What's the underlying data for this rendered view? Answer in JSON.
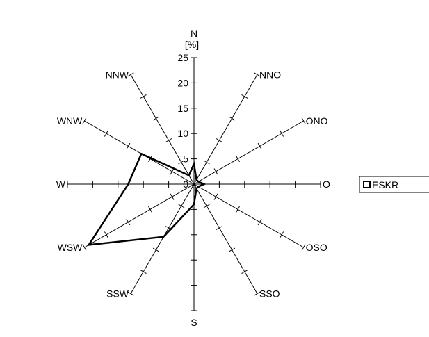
{
  "chart_data": {
    "type": "radar",
    "unit_label": "[%]",
    "directions": [
      "N",
      "NNO",
      "ONO",
      "O",
      "OSO",
      "SSO",
      "S",
      "SSW",
      "WSW",
      "W",
      "WNW",
      "NNW"
    ],
    "rmax": 25,
    "tick_step": 5,
    "tick_labels": [
      "0",
      "5",
      "10",
      "15",
      "20",
      "25"
    ],
    "series": [
      {
        "name": "ESKR",
        "values": [
          4,
          1,
          1,
          2,
          1,
          1,
          4,
          12,
          24,
          13,
          12,
          2
        ]
      }
    ],
    "legend_position": "right",
    "grid": false
  },
  "colors": {
    "axis": "#000000",
    "series": "#000000",
    "background": "#ffffff"
  }
}
